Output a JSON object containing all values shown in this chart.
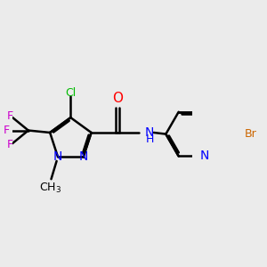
{
  "bg_color": "#ebebeb",
  "bond_color": "#000000",
  "bond_width": 1.8,
  "atom_colors": {
    "N": "#0000ff",
    "O": "#ff0000",
    "Cl": "#00bb00",
    "Br": "#cc6600",
    "F": "#cc00cc",
    "C": "#000000"
  },
  "font_size_atom": 10,
  "font_size_small": 9
}
